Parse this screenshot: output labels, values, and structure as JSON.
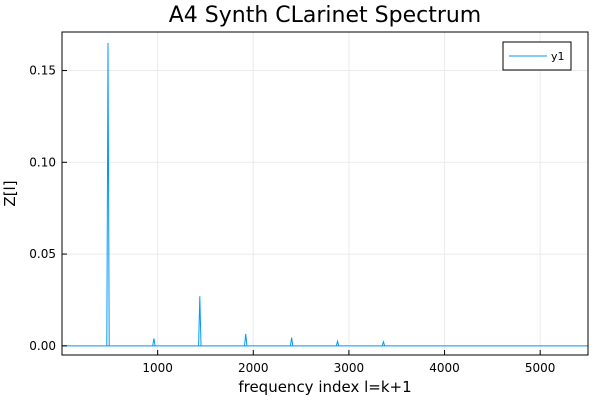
{
  "chart_data": {
    "type": "line",
    "title": "A4 Synth CLarinet Spectrum",
    "xlabel": "frequency index l=k+1",
    "ylabel": "Z[l]",
    "xlim": [
      0,
      5500
    ],
    "ylim": [
      -0.005,
      0.171
    ],
    "xticks": [
      1000,
      2000,
      3000,
      4000,
      5000
    ],
    "xtick_labels": [
      "1000",
      "2000",
      "3000",
      "4000",
      "5000"
    ],
    "yticks": [
      0.0,
      0.05,
      0.1,
      0.15
    ],
    "ytick_labels": [
      "0.00",
      "0.05",
      "0.10",
      "0.15"
    ],
    "grid": true,
    "legend_position": "top-right",
    "color": "#009af9",
    "series": [
      {
        "name": "y1",
        "peaks": [
          {
            "x": 481,
            "y": 0.165
          },
          {
            "x": 961,
            "y": 0.004
          },
          {
            "x": 1441,
            "y": 0.027
          },
          {
            "x": 1921,
            "y": 0.0065
          },
          {
            "x": 2401,
            "y": 0.0045
          },
          {
            "x": 2881,
            "y": 0.0025
          },
          {
            "x": 3361,
            "y": 0.0022
          }
        ]
      }
    ]
  }
}
